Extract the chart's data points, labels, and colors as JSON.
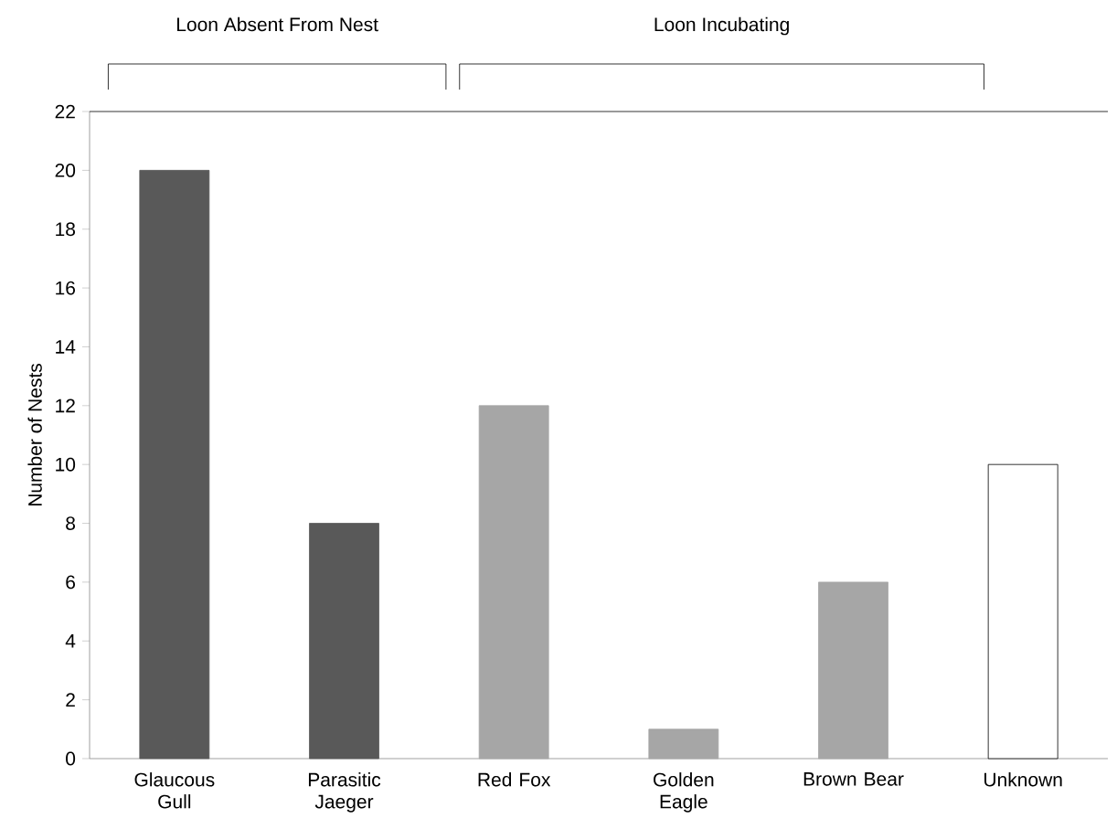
{
  "chart_data": {
    "type": "bar",
    "ylabel": "Number of Nests",
    "categories": [
      "Glaucous Gull",
      "Parasitic Jaeger",
      "Red Fox",
      "Golden Eagle",
      "Brown Bear",
      "Unknown"
    ],
    "values": [
      20,
      8,
      12,
      1,
      6,
      10
    ],
    "colors": [
      "#595959",
      "#595959",
      "#a6a6a6",
      "#a6a6a6",
      "#a6a6a6",
      "#ffffff"
    ],
    "ylim": [
      0,
      22
    ],
    "yticks": [
      0,
      2,
      4,
      6,
      8,
      10,
      12,
      14,
      16,
      18,
      20,
      22
    ],
    "annotations": [
      "Loon Absent From Nest",
      "Loon Incubating"
    ]
  }
}
